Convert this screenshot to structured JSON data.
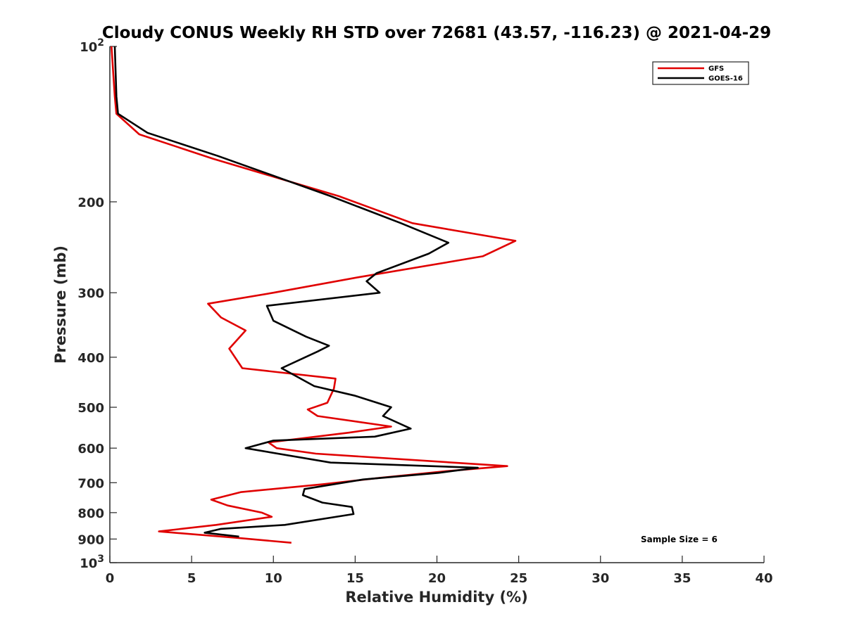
{
  "chart_data": {
    "type": "line",
    "title": "Cloudy CONUS Weekly RH STD over 72681 (43.57, -116.23) @ 2021-04-29",
    "xlabel": "Relative Humidity (%)",
    "ylabel": "Pressure (mb)",
    "xlim": [
      0,
      40
    ],
    "ylim": [
      100,
      1000
    ],
    "y_scale": "log",
    "y_reversed": true,
    "grid": false,
    "legend_position": "top-right",
    "x_ticks": [
      0,
      5,
      10,
      15,
      20,
      25,
      30,
      35,
      40
    ],
    "x_tick_labels": [
      "0",
      "5",
      "10",
      "15",
      "20",
      "25",
      "30",
      "35",
      "40"
    ],
    "y_ticks": [
      100,
      200,
      300,
      400,
      500,
      600,
      700,
      800,
      900,
      1000
    ],
    "y_tick_labels": [
      {
        "base": "10",
        "exp": "2"
      },
      {
        "base": "200",
        "exp": ""
      },
      {
        "base": "300",
        "exp": ""
      },
      {
        "base": "400",
        "exp": ""
      },
      {
        "base": "500",
        "exp": ""
      },
      {
        "base": "600",
        "exp": ""
      },
      {
        "base": "700",
        "exp": ""
      },
      {
        "base": "800",
        "exp": ""
      },
      {
        "base": "900",
        "exp": ""
      },
      {
        "base": "10",
        "exp": "3"
      }
    ],
    "annotation": "Sample Size = 6",
    "series": [
      {
        "name": "GFS",
        "color": "#e00000",
        "points": [
          [
            0.1,
            100
          ],
          [
            0.3,
            125
          ],
          [
            0.4,
            135
          ],
          [
            1.8,
            148
          ],
          [
            6.3,
            165
          ],
          [
            14.0,
            195
          ],
          [
            18.5,
            220
          ],
          [
            24.8,
            238
          ],
          [
            22.8,
            255
          ],
          [
            15.2,
            280
          ],
          [
            10.0,
            300
          ],
          [
            6.0,
            315
          ],
          [
            6.8,
            335
          ],
          [
            8.3,
            355
          ],
          [
            7.3,
            385
          ],
          [
            8.1,
            420
          ],
          [
            13.8,
            440
          ],
          [
            13.7,
            460
          ],
          [
            13.3,
            490
          ],
          [
            12.1,
            505
          ],
          [
            12.7,
            520
          ],
          [
            17.2,
            545
          ],
          [
            14.6,
            560
          ],
          [
            9.7,
            585
          ],
          [
            10.2,
            600
          ],
          [
            12.6,
            615
          ],
          [
            24.3,
            650
          ],
          [
            20.5,
            665
          ],
          [
            16.5,
            685
          ],
          [
            13.0,
            705
          ],
          [
            8.0,
            730
          ],
          [
            6.2,
            755
          ],
          [
            7.2,
            775
          ],
          [
            9.3,
            800
          ],
          [
            9.9,
            815
          ],
          [
            6.5,
            845
          ],
          [
            3.0,
            870
          ],
          [
            7.7,
            895
          ],
          [
            11.1,
            915
          ]
        ]
      },
      {
        "name": "GOES-16",
        "color": "#000000",
        "points": [
          [
            0.3,
            100
          ],
          [
            0.4,
            125
          ],
          [
            0.5,
            135
          ],
          [
            2.3,
            147
          ],
          [
            6.6,
            163
          ],
          [
            13.5,
            195
          ],
          [
            17.8,
            220
          ],
          [
            20.7,
            240
          ],
          [
            19.5,
            252
          ],
          [
            16.3,
            275
          ],
          [
            15.7,
            285
          ],
          [
            16.5,
            300
          ],
          [
            9.6,
            318
          ],
          [
            10.0,
            340
          ],
          [
            12.0,
            365
          ],
          [
            13.4,
            380
          ],
          [
            12.7,
            390
          ],
          [
            10.5,
            420
          ],
          [
            12.5,
            455
          ],
          [
            15.0,
            475
          ],
          [
            17.2,
            500
          ],
          [
            16.7,
            520
          ],
          [
            18.4,
            550
          ],
          [
            16.2,
            570
          ],
          [
            10.0,
            580
          ],
          [
            8.3,
            600
          ],
          [
            13.5,
            640
          ],
          [
            22.5,
            655
          ],
          [
            20.1,
            670
          ],
          [
            15.5,
            690
          ],
          [
            11.9,
            720
          ],
          [
            11.8,
            740
          ],
          [
            13.0,
            765
          ],
          [
            14.8,
            780
          ],
          [
            14.9,
            805
          ],
          [
            10.7,
            845
          ],
          [
            6.8,
            860
          ],
          [
            5.8,
            875
          ],
          [
            7.9,
            890
          ]
        ]
      }
    ]
  }
}
